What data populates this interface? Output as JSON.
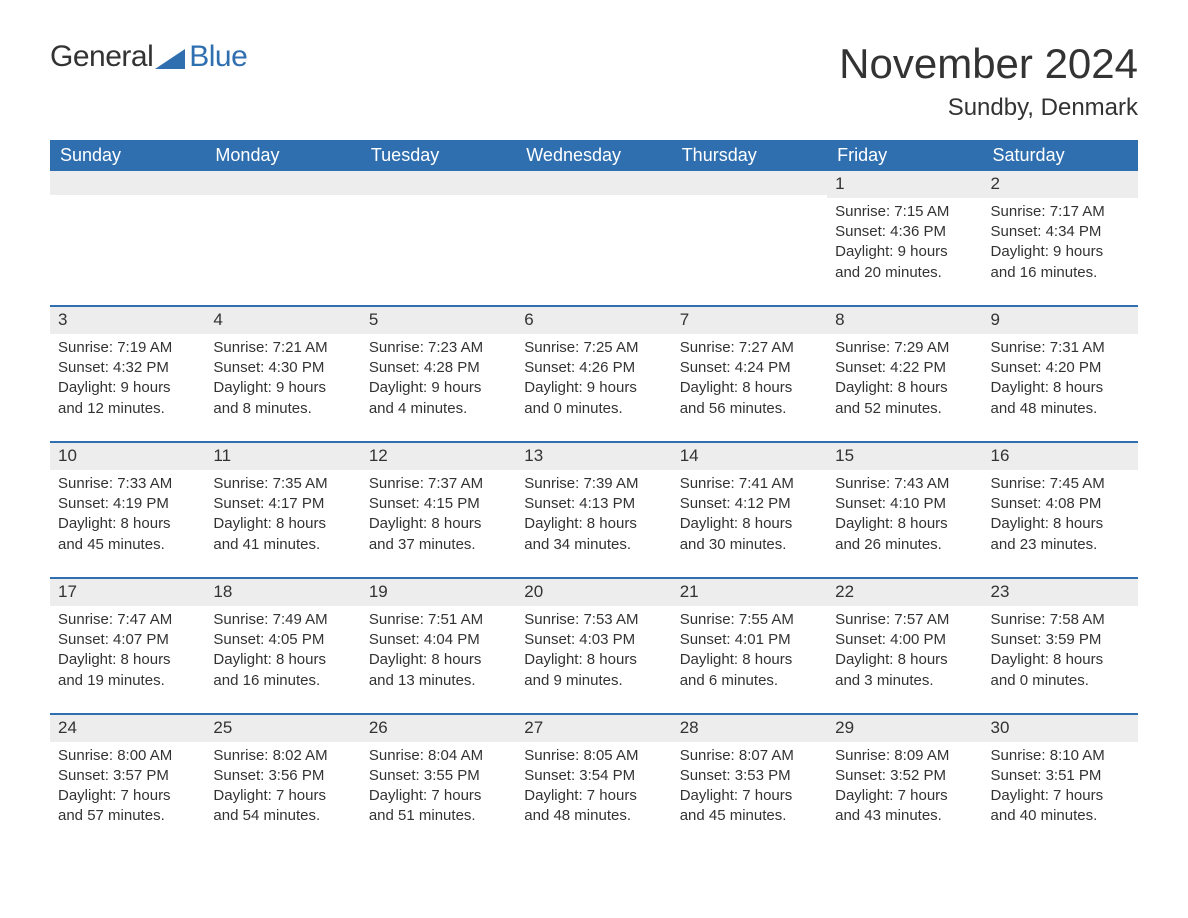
{
  "logo": {
    "part1": "General",
    "part2": "Blue",
    "text_color": "#333333",
    "accent_color": "#2f6fb0"
  },
  "title": "November 2024",
  "location": "Sundby, Denmark",
  "colors": {
    "header_bg": "#2f6fb0",
    "header_text": "#ffffff",
    "row_divider": "#2f6fb0",
    "daynum_bg": "#ededed",
    "body_text": "#333333",
    "page_bg": "#ffffff"
  },
  "fonts": {
    "title_size_pt": 32,
    "location_size_pt": 18,
    "header_size_pt": 14,
    "body_size_pt": 11
  },
  "weekdays": [
    "Sunday",
    "Monday",
    "Tuesday",
    "Wednesday",
    "Thursday",
    "Friday",
    "Saturday"
  ],
  "weeks": [
    [
      null,
      null,
      null,
      null,
      null,
      {
        "n": "1",
        "sr": "Sunrise: 7:15 AM",
        "ss": "Sunset: 4:36 PM",
        "d1": "Daylight: 9 hours",
        "d2": "and 20 minutes."
      },
      {
        "n": "2",
        "sr": "Sunrise: 7:17 AM",
        "ss": "Sunset: 4:34 PM",
        "d1": "Daylight: 9 hours",
        "d2": "and 16 minutes."
      }
    ],
    [
      {
        "n": "3",
        "sr": "Sunrise: 7:19 AM",
        "ss": "Sunset: 4:32 PM",
        "d1": "Daylight: 9 hours",
        "d2": "and 12 minutes."
      },
      {
        "n": "4",
        "sr": "Sunrise: 7:21 AM",
        "ss": "Sunset: 4:30 PM",
        "d1": "Daylight: 9 hours",
        "d2": "and 8 minutes."
      },
      {
        "n": "5",
        "sr": "Sunrise: 7:23 AM",
        "ss": "Sunset: 4:28 PM",
        "d1": "Daylight: 9 hours",
        "d2": "and 4 minutes."
      },
      {
        "n": "6",
        "sr": "Sunrise: 7:25 AM",
        "ss": "Sunset: 4:26 PM",
        "d1": "Daylight: 9 hours",
        "d2": "and 0 minutes."
      },
      {
        "n": "7",
        "sr": "Sunrise: 7:27 AM",
        "ss": "Sunset: 4:24 PM",
        "d1": "Daylight: 8 hours",
        "d2": "and 56 minutes."
      },
      {
        "n": "8",
        "sr": "Sunrise: 7:29 AM",
        "ss": "Sunset: 4:22 PM",
        "d1": "Daylight: 8 hours",
        "d2": "and 52 minutes."
      },
      {
        "n": "9",
        "sr": "Sunrise: 7:31 AM",
        "ss": "Sunset: 4:20 PM",
        "d1": "Daylight: 8 hours",
        "d2": "and 48 minutes."
      }
    ],
    [
      {
        "n": "10",
        "sr": "Sunrise: 7:33 AM",
        "ss": "Sunset: 4:19 PM",
        "d1": "Daylight: 8 hours",
        "d2": "and 45 minutes."
      },
      {
        "n": "11",
        "sr": "Sunrise: 7:35 AM",
        "ss": "Sunset: 4:17 PM",
        "d1": "Daylight: 8 hours",
        "d2": "and 41 minutes."
      },
      {
        "n": "12",
        "sr": "Sunrise: 7:37 AM",
        "ss": "Sunset: 4:15 PM",
        "d1": "Daylight: 8 hours",
        "d2": "and 37 minutes."
      },
      {
        "n": "13",
        "sr": "Sunrise: 7:39 AM",
        "ss": "Sunset: 4:13 PM",
        "d1": "Daylight: 8 hours",
        "d2": "and 34 minutes."
      },
      {
        "n": "14",
        "sr": "Sunrise: 7:41 AM",
        "ss": "Sunset: 4:12 PM",
        "d1": "Daylight: 8 hours",
        "d2": "and 30 minutes."
      },
      {
        "n": "15",
        "sr": "Sunrise: 7:43 AM",
        "ss": "Sunset: 4:10 PM",
        "d1": "Daylight: 8 hours",
        "d2": "and 26 minutes."
      },
      {
        "n": "16",
        "sr": "Sunrise: 7:45 AM",
        "ss": "Sunset: 4:08 PM",
        "d1": "Daylight: 8 hours",
        "d2": "and 23 minutes."
      }
    ],
    [
      {
        "n": "17",
        "sr": "Sunrise: 7:47 AM",
        "ss": "Sunset: 4:07 PM",
        "d1": "Daylight: 8 hours",
        "d2": "and 19 minutes."
      },
      {
        "n": "18",
        "sr": "Sunrise: 7:49 AM",
        "ss": "Sunset: 4:05 PM",
        "d1": "Daylight: 8 hours",
        "d2": "and 16 minutes."
      },
      {
        "n": "19",
        "sr": "Sunrise: 7:51 AM",
        "ss": "Sunset: 4:04 PM",
        "d1": "Daylight: 8 hours",
        "d2": "and 13 minutes."
      },
      {
        "n": "20",
        "sr": "Sunrise: 7:53 AM",
        "ss": "Sunset: 4:03 PM",
        "d1": "Daylight: 8 hours",
        "d2": "and 9 minutes."
      },
      {
        "n": "21",
        "sr": "Sunrise: 7:55 AM",
        "ss": "Sunset: 4:01 PM",
        "d1": "Daylight: 8 hours",
        "d2": "and 6 minutes."
      },
      {
        "n": "22",
        "sr": "Sunrise: 7:57 AM",
        "ss": "Sunset: 4:00 PM",
        "d1": "Daylight: 8 hours",
        "d2": "and 3 minutes."
      },
      {
        "n": "23",
        "sr": "Sunrise: 7:58 AM",
        "ss": "Sunset: 3:59 PM",
        "d1": "Daylight: 8 hours",
        "d2": "and 0 minutes."
      }
    ],
    [
      {
        "n": "24",
        "sr": "Sunrise: 8:00 AM",
        "ss": "Sunset: 3:57 PM",
        "d1": "Daylight: 7 hours",
        "d2": "and 57 minutes."
      },
      {
        "n": "25",
        "sr": "Sunrise: 8:02 AM",
        "ss": "Sunset: 3:56 PM",
        "d1": "Daylight: 7 hours",
        "d2": "and 54 minutes."
      },
      {
        "n": "26",
        "sr": "Sunrise: 8:04 AM",
        "ss": "Sunset: 3:55 PM",
        "d1": "Daylight: 7 hours",
        "d2": "and 51 minutes."
      },
      {
        "n": "27",
        "sr": "Sunrise: 8:05 AM",
        "ss": "Sunset: 3:54 PM",
        "d1": "Daylight: 7 hours",
        "d2": "and 48 minutes."
      },
      {
        "n": "28",
        "sr": "Sunrise: 8:07 AM",
        "ss": "Sunset: 3:53 PM",
        "d1": "Daylight: 7 hours",
        "d2": "and 45 minutes."
      },
      {
        "n": "29",
        "sr": "Sunrise: 8:09 AM",
        "ss": "Sunset: 3:52 PM",
        "d1": "Daylight: 7 hours",
        "d2": "and 43 minutes."
      },
      {
        "n": "30",
        "sr": "Sunrise: 8:10 AM",
        "ss": "Sunset: 3:51 PM",
        "d1": "Daylight: 7 hours",
        "d2": "and 40 minutes."
      }
    ]
  ]
}
